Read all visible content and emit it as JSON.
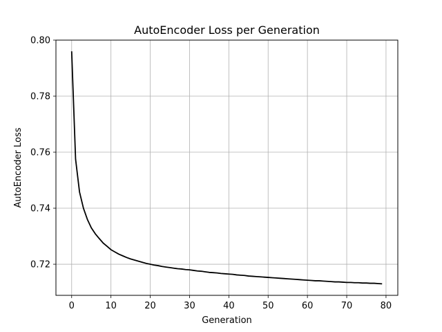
{
  "chart_data": {
    "type": "line",
    "title": "AutoEncoder Loss per Generation",
    "xlabel": "Generation",
    "ylabel": "AutoEncoder Loss",
    "xlim": [
      -4,
      83
    ],
    "ylim": [
      0.7089,
      0.8
    ],
    "xticks": [
      0,
      10,
      20,
      30,
      40,
      50,
      60,
      70,
      80
    ],
    "yticks": [
      0.72,
      0.74,
      0.76,
      0.78,
      0.8
    ],
    "ytick_labels": [
      "0.72",
      "0.74",
      "0.76",
      "0.78",
      "0.80"
    ],
    "grid": true,
    "line_color": "#000000",
    "grid_color": "#b0b0b0",
    "series": [
      {
        "x": [
          0,
          1,
          2,
          3,
          4,
          5,
          6,
          7,
          8,
          9,
          10,
          11,
          12,
          13,
          14,
          15,
          16,
          17,
          18,
          19,
          20,
          21,
          22,
          23,
          24,
          25,
          26,
          27,
          28,
          29,
          30,
          31,
          32,
          33,
          34,
          35,
          36,
          37,
          38,
          39,
          40,
          41,
          42,
          43,
          44,
          45,
          46,
          47,
          48,
          49,
          50,
          51,
          52,
          53,
          54,
          55,
          56,
          57,
          58,
          59,
          60,
          61,
          62,
          63,
          64,
          65,
          66,
          67,
          68,
          69,
          70,
          71,
          72,
          73,
          74,
          75,
          76,
          77,
          78,
          79
        ],
        "y": [
          0.796,
          0.7575,
          0.7458,
          0.74,
          0.736,
          0.733,
          0.7309,
          0.7292,
          0.7276,
          0.7264,
          0.7252,
          0.7244,
          0.7236,
          0.723,
          0.7224,
          0.7219,
          0.7215,
          0.7211,
          0.7207,
          0.7203,
          0.72,
          0.7197,
          0.7195,
          0.7192,
          0.719,
          0.7188,
          0.7186,
          0.7184,
          0.7183,
          0.7181,
          0.718,
          0.7178,
          0.7176,
          0.7175,
          0.7173,
          0.7171,
          0.717,
          0.7169,
          0.7167,
          0.7166,
          0.7165,
          0.7164,
          0.7162,
          0.7161,
          0.716,
          0.7158,
          0.7157,
          0.7156,
          0.7155,
          0.7154,
          0.7153,
          0.7152,
          0.7151,
          0.715,
          0.7149,
          0.7148,
          0.7147,
          0.7146,
          0.7145,
          0.7144,
          0.7143,
          0.7142,
          0.7141,
          0.7141,
          0.714,
          0.7139,
          0.7138,
          0.7137,
          0.7137,
          0.7136,
          0.7135,
          0.7135,
          0.7134,
          0.7134,
          0.7133,
          0.7133,
          0.7132,
          0.7132,
          0.7131,
          0.713
        ]
      }
    ]
  }
}
